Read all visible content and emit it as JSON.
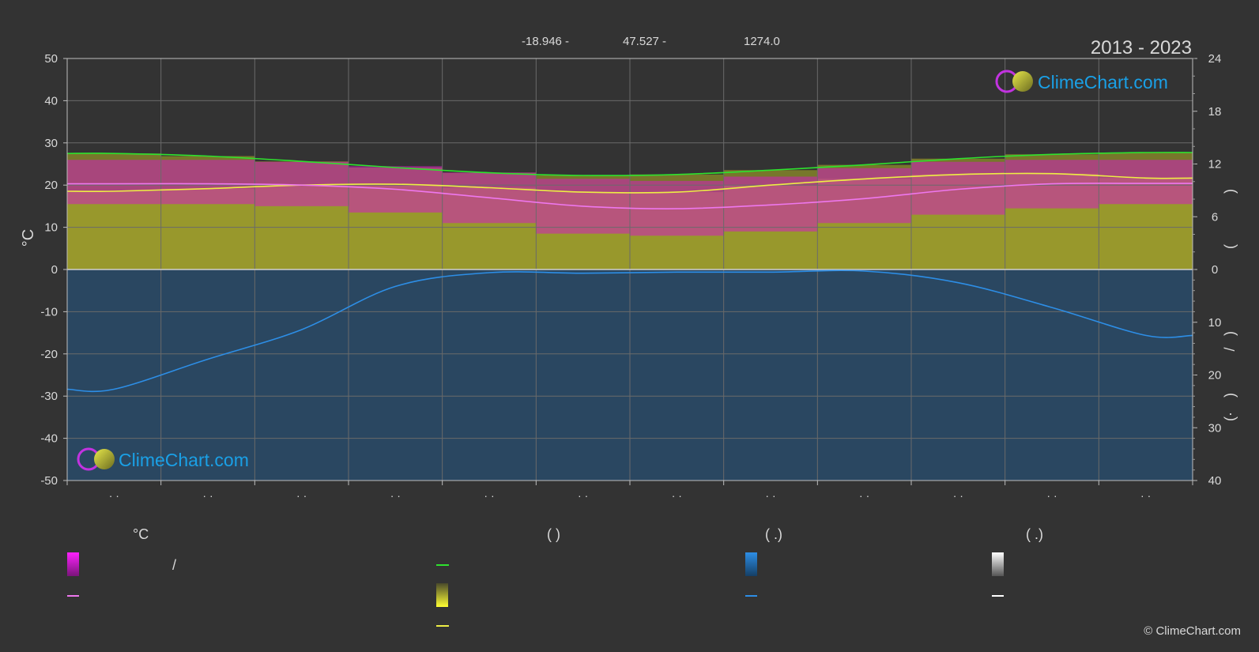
{
  "header": {
    "coords": [
      "-18.946 -",
      "47.527 -",
      "1274.0"
    ],
    "period": "2013 - 2023"
  },
  "brand": {
    "name": "ClimeChart.com",
    "copyright": "© ClimeChart.com"
  },
  "colors": {
    "background": "#333333",
    "temp_range_band": "#d11fbf",
    "daylight": "#8f8f2a",
    "sunshine": "#b5b52e",
    "rain": "#1f5f99",
    "max_temp_line": "#2ee22e",
    "mean_line": "#ee77ee",
    "sunshine_line": "#eeee44",
    "rain_line": "#2d8ee6",
    "brand": "#1aa0e6"
  },
  "legend": {
    "col1": {
      "title": "°C",
      "row1_label": "/",
      "row2_label": ""
    },
    "col2": {
      "title": "(          )"
    },
    "col3": {
      "title": "(   .)"
    },
    "col4": {
      "title": "(   .)"
    }
  },
  "chart_data": {
    "type": "area",
    "months": [
      "· ·",
      "· ·",
      "· ·",
      "· ·",
      "· ·",
      "· ·",
      "· ·",
      "· ·",
      "· ·",
      "· ·",
      "· ·",
      "· ·"
    ],
    "ylabel_left": "°C",
    "ylim_left": [
      -50,
      50
    ],
    "yticks_left": [
      50,
      40,
      30,
      20,
      10,
      0,
      -10,
      -20,
      -30,
      -40,
      -50
    ],
    "yticks_right_hours": [
      24,
      18,
      12,
      6,
      0
    ],
    "yticks_right_precip": [
      10,
      20,
      30,
      40
    ],
    "right_axis_chars": [
      ")",
      "(",
      ")",
      "/",
      ")",
      "(·"
    ],
    "series": [
      {
        "key": "daylight",
        "values": [
          13.2,
          12.9,
          12.3,
          11.6,
          11.0,
          10.7,
          10.8,
          11.3,
          11.9,
          12.6,
          13.1,
          13.3
        ]
      },
      {
        "key": "sunshine",
        "values": [
          8.9,
          9.2,
          9.6,
          9.7,
          9.3,
          8.8,
          8.8,
          9.6,
          10.3,
          10.8,
          10.9,
          10.4
        ]
      },
      {
        "key": "mean_temp",
        "values": [
          20.3,
          20.3,
          20.0,
          19.0,
          17.0,
          15.0,
          14.4,
          15.3,
          16.8,
          19.0,
          20.3,
          20.4
        ]
      },
      {
        "key": "max_temp_top",
        "values": [
          26,
          26,
          25.5,
          24.5,
          23,
          21.5,
          21,
          22,
          24,
          25.5,
          26,
          26
        ]
      },
      {
        "key": "min_temp_bottom",
        "values": [
          15.5,
          15.5,
          15,
          13.5,
          11,
          8.5,
          8,
          9,
          11,
          13,
          14.5,
          15.5
        ]
      },
      {
        "key": "rain_mm",
        "values": [
          22.7,
          17,
          11.4,
          3.2,
          0.6,
          0.7,
          0.5,
          0.5,
          0.3,
          2.5,
          7.2,
          12.5
        ]
      }
    ]
  }
}
